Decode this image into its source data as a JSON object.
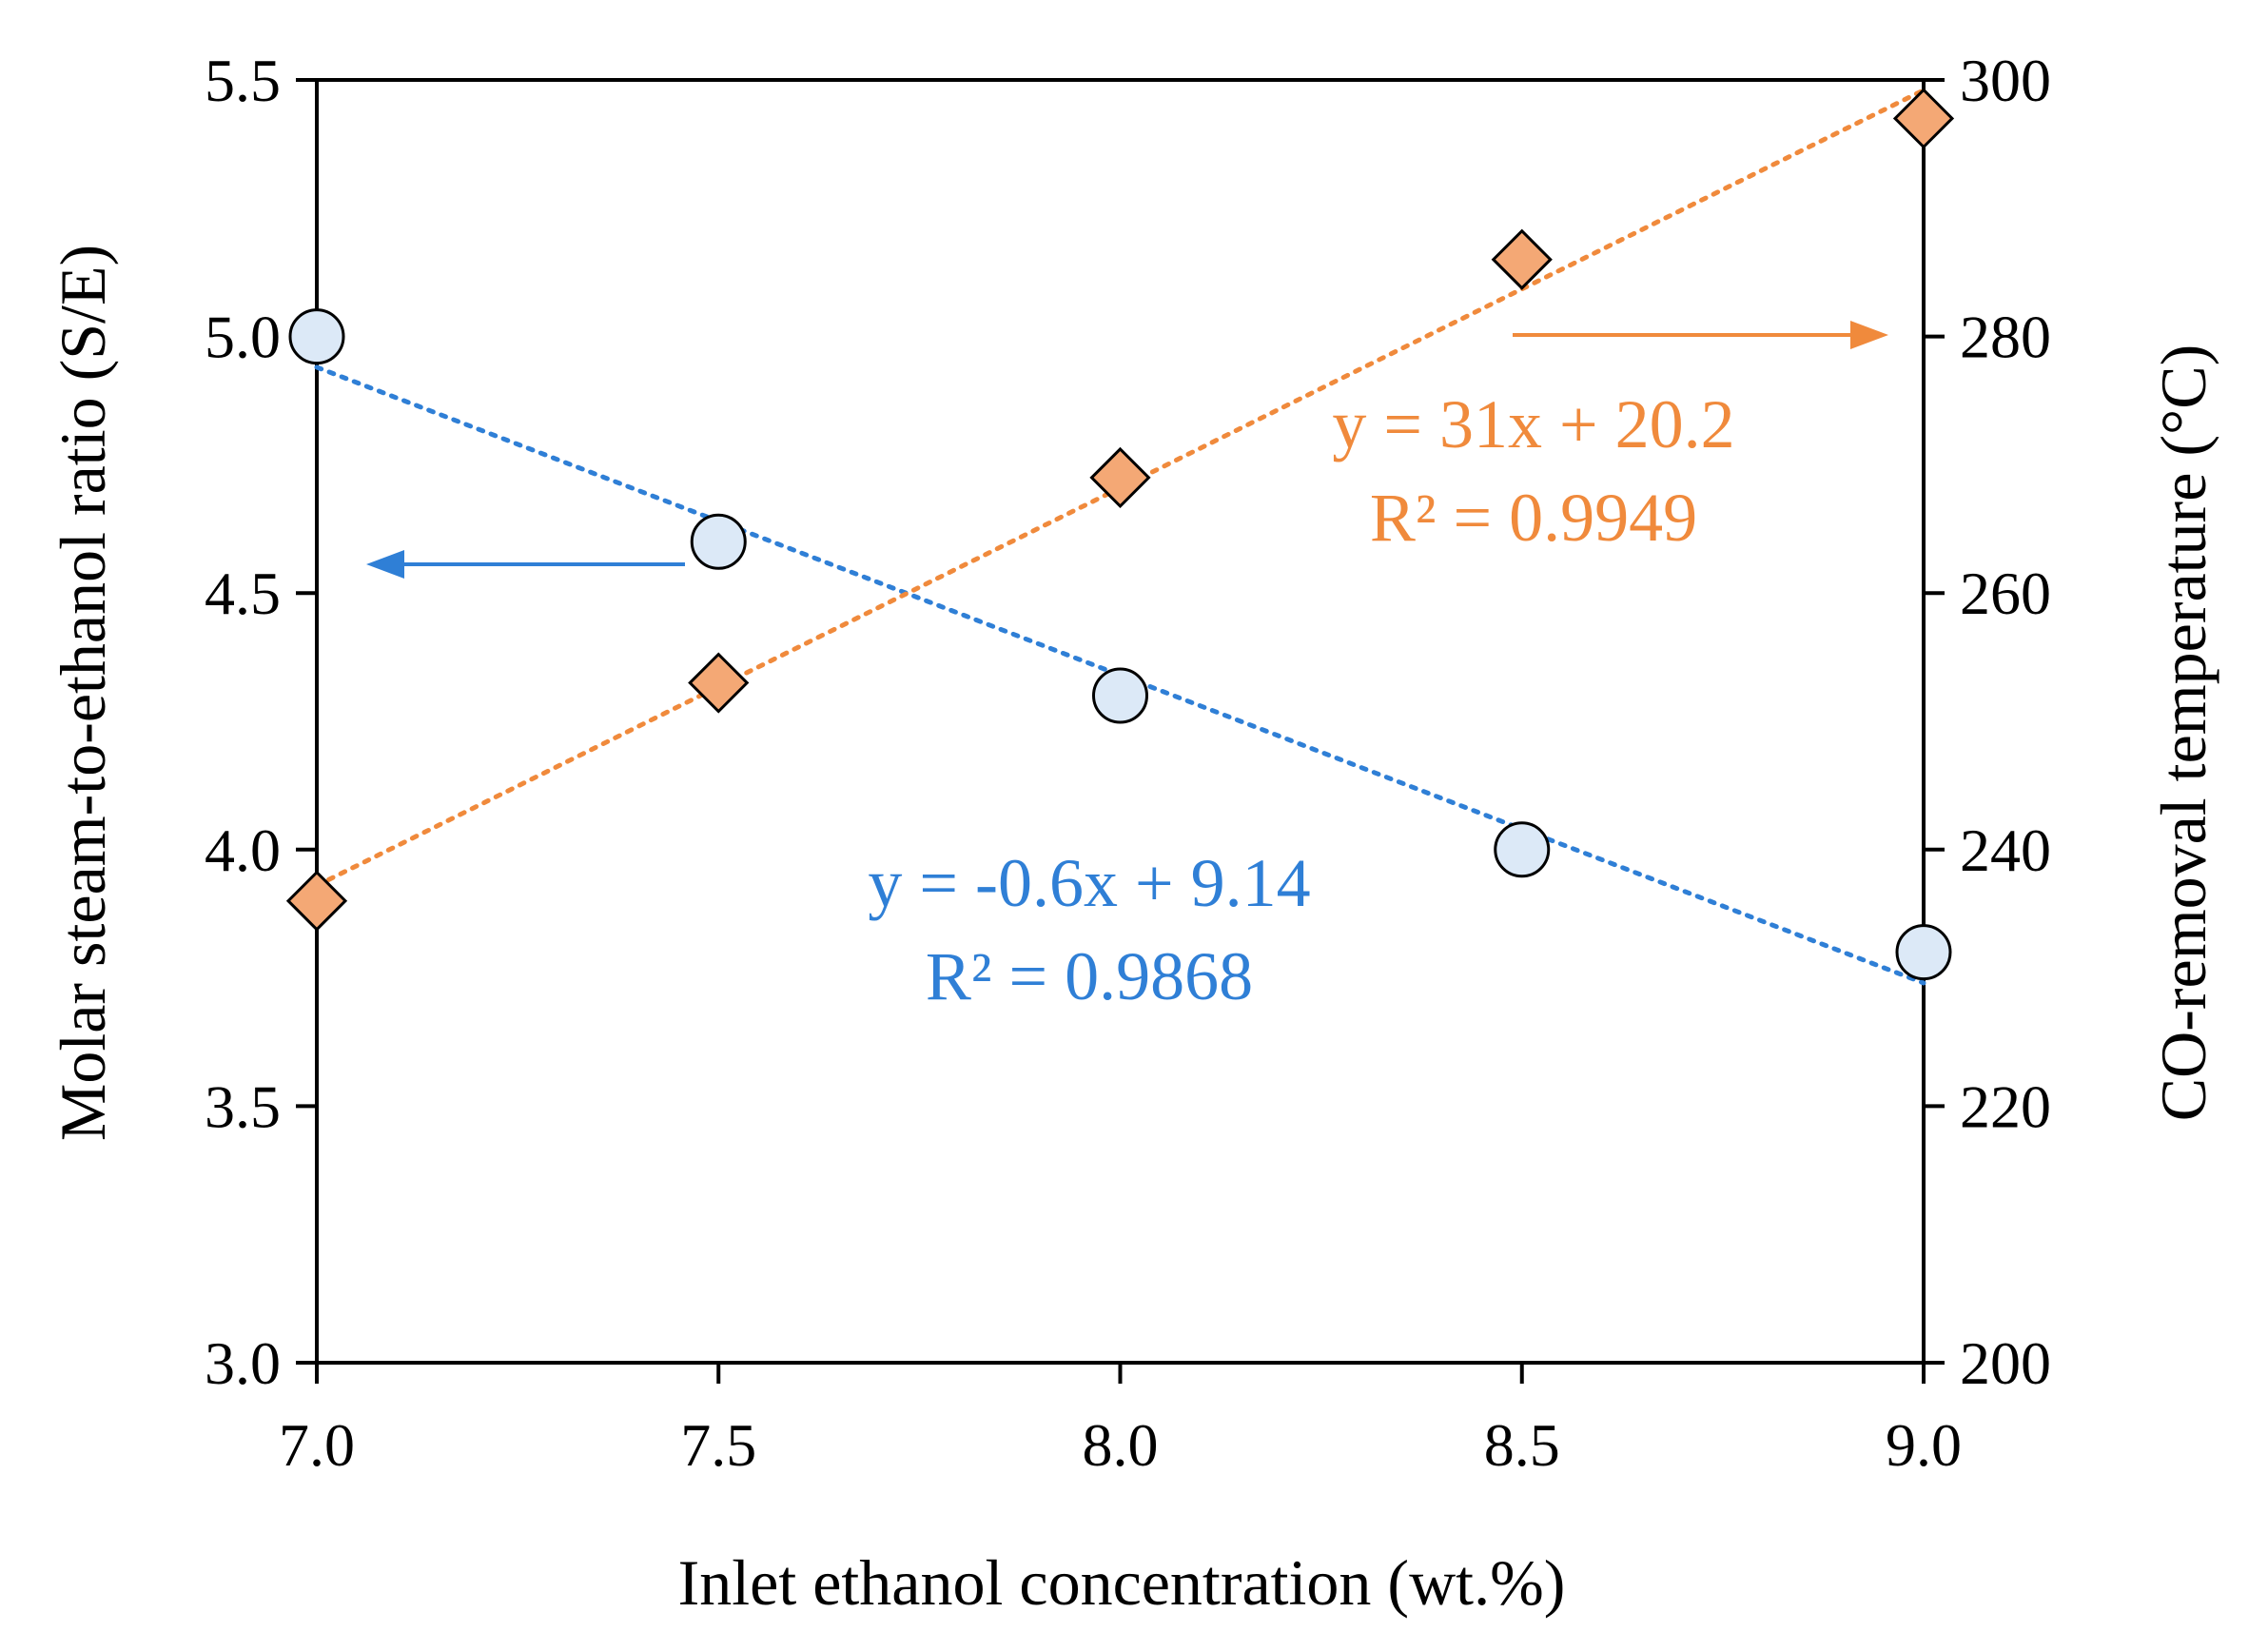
{
  "chart_data": {
    "type": "scatter",
    "title": "",
    "xlabel": "Inlet ethanol concentration (wt.%)",
    "ylabel_left": "Molar steam-to-ethanol ratio (S/E)",
    "ylabel_right": "CO-removal temperature (°C)",
    "xlim": [
      7.0,
      9.0
    ],
    "ylim_left": [
      3.0,
      5.5
    ],
    "ylim_right": [
      200,
      300
    ],
    "x_ticks": [
      "7.0",
      "7.5",
      "8.0",
      "8.5",
      "9.0"
    ],
    "y_left_ticks": [
      "3.0",
      "3.5",
      "4.0",
      "4.5",
      "5.0",
      "5.5"
    ],
    "y_right_ticks": [
      "200",
      "220",
      "240",
      "260",
      "280",
      "300"
    ],
    "grid": false,
    "series": [
      {
        "name": "Molar S/E ratio",
        "axis": "left",
        "marker": "circle",
        "color": "#dce9f7",
        "line_color": "#2f7fd6",
        "x": [
          7.0,
          7.5,
          8.0,
          8.5,
          9.0
        ],
        "values": [
          5.0,
          4.6,
          4.3,
          4.0,
          3.8
        ],
        "trendline": {
          "slope": -0.6,
          "intercept": 9.14
        },
        "equation": "y = -0.6x + 9.14",
        "r2": "R² = 0.9868"
      },
      {
        "name": "CO-removal temperature",
        "axis": "right",
        "marker": "diamond",
        "color": "#f4a875",
        "line_color": "#f08a3c",
        "x": [
          7.0,
          7.5,
          8.0,
          8.5,
          9.0
        ],
        "values": [
          236,
          253,
          269,
          286,
          297
        ],
        "trendline": {
          "slope": 31,
          "intercept": 20.2
        },
        "equation": "y = 31x + 20.2",
        "r2": "R² = 0.9949"
      }
    ]
  }
}
